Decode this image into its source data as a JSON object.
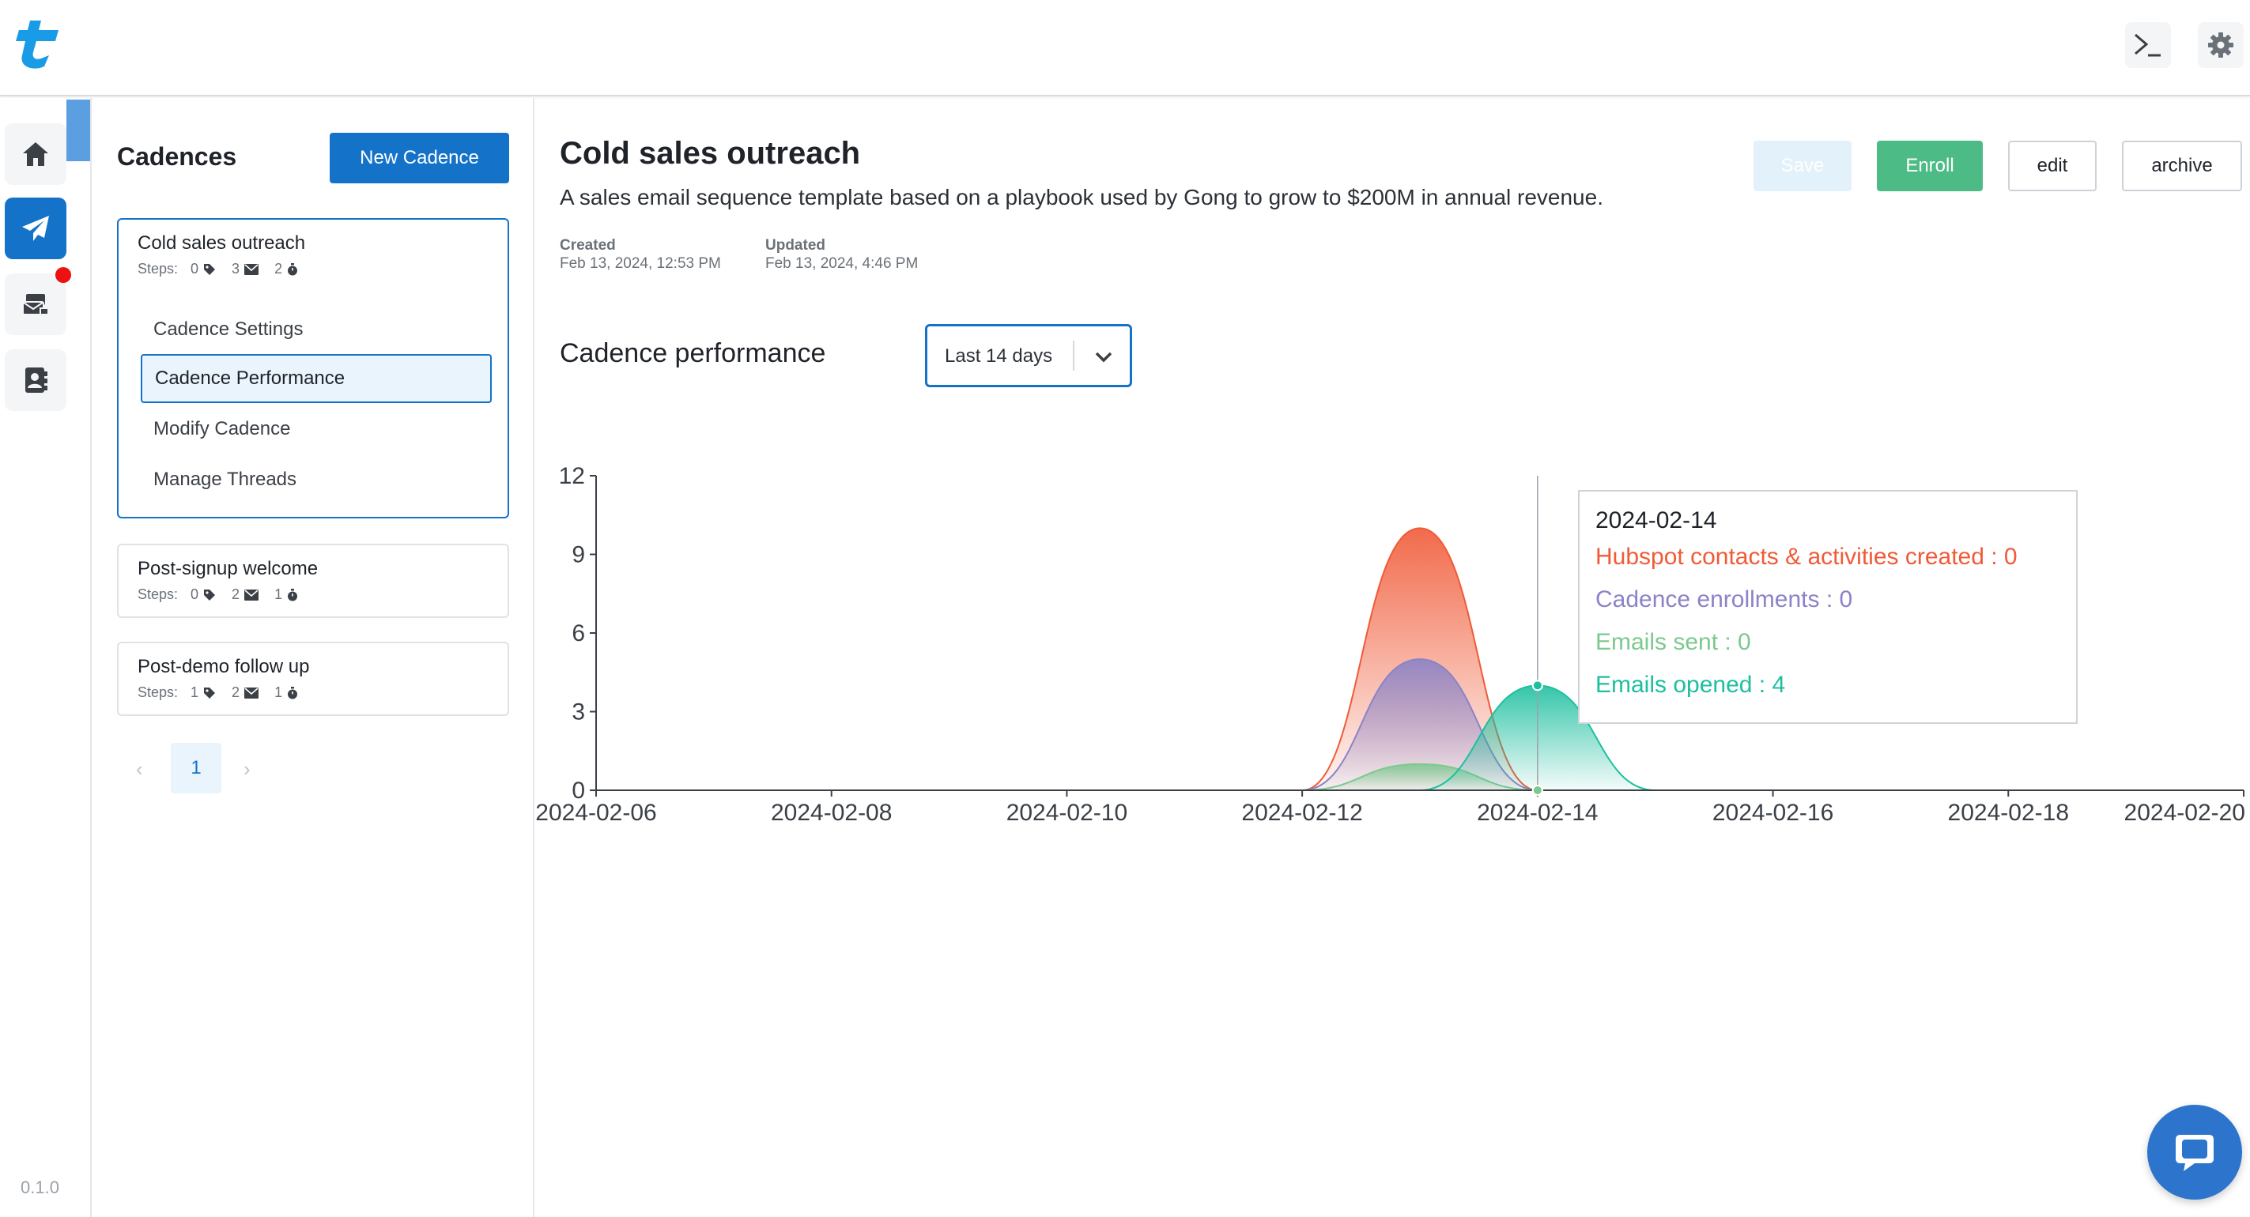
{
  "app": {
    "version": "0.1.0"
  },
  "sidebar": {
    "items": [
      {
        "id": "home",
        "icon": "home-icon"
      },
      {
        "id": "cadences",
        "icon": "paper-plane-icon",
        "active": true
      },
      {
        "id": "inbox",
        "icon": "mail-stack-icon",
        "badge": true
      },
      {
        "id": "contacts",
        "icon": "contact-book-icon"
      }
    ]
  },
  "list": {
    "title": "Cadences",
    "new_button": "New Cadence",
    "steps_label": "Steps:",
    "cadences": [
      {
        "name": "Cold sales outreach",
        "tags": "0",
        "emails": "3",
        "waits": "2"
      },
      {
        "name": "Post-signup welcome",
        "tags": "0",
        "emails": "2",
        "waits": "1"
      },
      {
        "name": "Post-demo follow up",
        "tags": "1",
        "emails": "2",
        "waits": "1"
      }
    ],
    "submenu": [
      "Cadence Settings",
      "Cadence Performance",
      "Modify Cadence",
      "Manage Threads"
    ],
    "pager": {
      "current": "1"
    }
  },
  "detail": {
    "title": "Cold sales outreach",
    "description": "A sales email sequence template based on a playbook used by Gong to grow to $200M in annual revenue.",
    "created_label": "Created",
    "created_value": "Feb 13, 2024, 12:53 PM",
    "updated_label": "Updated",
    "updated_value": "Feb 13, 2024, 4:46 PM",
    "buttons": {
      "save": "Save",
      "enroll": "Enroll",
      "edit": "edit",
      "archive": "archive"
    },
    "performance_title": "Cadence performance",
    "range": "Last 14 days"
  },
  "tooltip": {
    "date": "2024-02-14",
    "lines": [
      {
        "label": "Hubspot contacts & activities created : 0",
        "color": "#f05a37"
      },
      {
        "label": "Cadence enrollments : 0",
        "color": "#8b83c7"
      },
      {
        "label": "Emails sent : 0",
        "color": "#7cc98f"
      },
      {
        "label": "Emails opened : 4",
        "color": "#1dbf9f"
      }
    ]
  },
  "colors": {
    "primary": "#1473c9",
    "enroll": "#4dbb85",
    "hubspot": "#f05a37",
    "enrollments": "#8b83c7",
    "sent": "#7cc98f",
    "opened": "#1dbf9f"
  },
  "chart_data": {
    "type": "area",
    "x": [
      "2024-02-06",
      "2024-02-07",
      "2024-02-08",
      "2024-02-09",
      "2024-02-10",
      "2024-02-11",
      "2024-02-12",
      "2024-02-13",
      "2024-02-14",
      "2024-02-15",
      "2024-02-16",
      "2024-02-17",
      "2024-02-18",
      "2024-02-19",
      "2024-02-20"
    ],
    "x_ticks": [
      "2024-02-06",
      "2024-02-08",
      "2024-02-10",
      "2024-02-12",
      "2024-02-14",
      "2024-02-16",
      "2024-02-18",
      "2024-02-20"
    ],
    "y_ticks": [
      "0",
      "3",
      "6",
      "9",
      "12"
    ],
    "ylim": [
      0,
      12
    ],
    "series": [
      {
        "name": "Hubspot contacts & activities created",
        "values": [
          0,
          0,
          0,
          0,
          0,
          0,
          0,
          10,
          0,
          0,
          0,
          0,
          0,
          0,
          0
        ]
      },
      {
        "name": "Cadence enrollments",
        "values": [
          0,
          0,
          0,
          0,
          0,
          0,
          0,
          5,
          0,
          0,
          0,
          0,
          0,
          0,
          0
        ]
      },
      {
        "name": "Emails sent",
        "values": [
          0,
          0,
          0,
          0,
          0,
          0,
          0,
          1,
          0,
          0,
          0,
          0,
          0,
          0,
          0
        ]
      },
      {
        "name": "Emails opened",
        "values": [
          0,
          0,
          0,
          0,
          0,
          0,
          0,
          0,
          4,
          0,
          0,
          0,
          0,
          0,
          0
        ]
      }
    ],
    "hover_x": "2024-02-14"
  }
}
